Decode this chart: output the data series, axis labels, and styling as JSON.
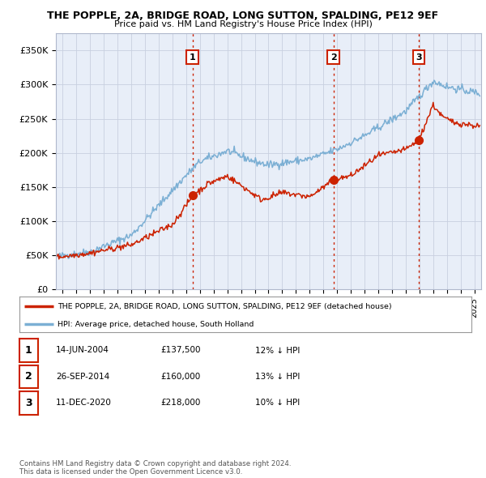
{
  "title": "THE POPPLE, 2A, BRIDGE ROAD, LONG SUTTON, SPALDING, PE12 9EF",
  "subtitle": "Price paid vs. HM Land Registry's House Price Index (HPI)",
  "ylabel_ticks": [
    "£0",
    "£50K",
    "£100K",
    "£150K",
    "£200K",
    "£250K",
    "£300K",
    "£350K"
  ],
  "ytick_values": [
    0,
    50000,
    100000,
    150000,
    200000,
    250000,
    300000,
    350000
  ],
  "ylim": [
    0,
    375000
  ],
  "xlim_start": 1994.5,
  "xlim_end": 2025.5,
  "hpi_color": "#7bafd4",
  "price_color": "#cc2200",
  "background_color": "#e8eef8",
  "grid_color": "#c8d0e0",
  "sale_dates": [
    2004.45,
    2014.73,
    2020.95
  ],
  "sale_prices": [
    137500,
    160000,
    218000
  ],
  "sale_labels": [
    "1",
    "2",
    "3"
  ],
  "vline_color": "#cc2200",
  "legend_text_red": "THE POPPLE, 2A, BRIDGE ROAD, LONG SUTTON, SPALDING, PE12 9EF (detached house)",
  "legend_text_blue": "HPI: Average price, detached house, South Holland",
  "table_rows": [
    [
      "1",
      "14-JUN-2004",
      "£137,500",
      "12% ↓ HPI"
    ],
    [
      "2",
      "26-SEP-2014",
      "£160,000",
      "13% ↓ HPI"
    ],
    [
      "3",
      "11-DEC-2020",
      "£218,000",
      "10% ↓ HPI"
    ]
  ],
  "footer": "Contains HM Land Registry data © Crown copyright and database right 2024.\nThis data is licensed under the Open Government Licence v3.0."
}
